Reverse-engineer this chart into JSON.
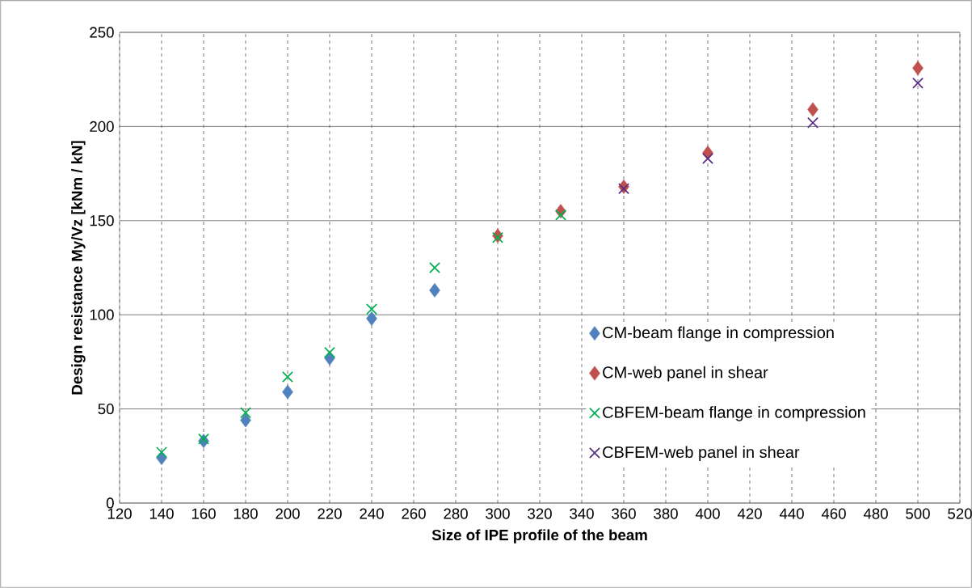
{
  "chart_data": {
    "type": "scatter",
    "xlabel": "Size of IPE profile of the beam",
    "ylabel": "Design resistance My/Vz [kNm / kN]",
    "xlim": [
      120,
      520
    ],
    "xticks": [
      120,
      140,
      160,
      180,
      200,
      220,
      240,
      260,
      280,
      300,
      320,
      340,
      360,
      380,
      400,
      420,
      440,
      460,
      480,
      500,
      520
    ],
    "ylim": [
      0,
      250
    ],
    "yticks": [
      0,
      50,
      100,
      150,
      200,
      250
    ],
    "grid": true,
    "legend": "bottom right",
    "series": [
      {
        "name": "CM-beam flange in compression",
        "color": "#4f81bd",
        "marker": "diamond",
        "x": [
          140,
          160,
          180,
          200,
          220,
          240,
          270
        ],
        "values": [
          24,
          33,
          44,
          59,
          77,
          98,
          113
        ]
      },
      {
        "name": "CM-web panel in shear",
        "color": "#c0504d",
        "marker": "diamond",
        "x": [
          300,
          330,
          360,
          400,
          450,
          500
        ],
        "values": [
          142,
          155,
          168,
          186,
          209,
          231
        ]
      },
      {
        "name": "CBFEM-beam flange in compression",
        "color": "#00b050",
        "marker": "cross",
        "x": [
          140,
          160,
          180,
          200,
          220,
          240,
          270,
          300,
          330
        ],
        "values": [
          27,
          34,
          48,
          67,
          80,
          103,
          125,
          141,
          153
        ]
      },
      {
        "name": "CBFEM-web panel in shear",
        "color": "#5b2c83",
        "marker": "cross",
        "x": [
          360,
          400,
          450,
          500
        ],
        "values": [
          167,
          183,
          202,
          223
        ]
      }
    ]
  }
}
